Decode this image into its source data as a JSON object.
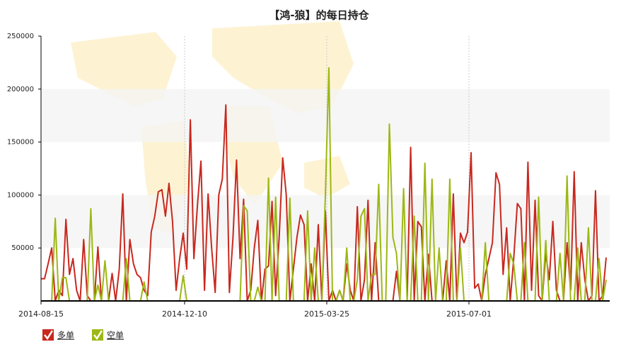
{
  "chart_data": {
    "type": "line",
    "title": "【鸿-狼】的每日持仓",
    "categories": [
      "2014-08-15",
      null,
      null,
      null,
      null,
      null,
      null,
      null,
      null,
      null,
      null,
      null,
      null,
      null,
      null,
      null,
      null,
      null,
      null,
      null,
      null,
      null,
      null,
      null,
      null,
      null,
      null,
      null,
      null,
      null,
      null,
      null,
      null,
      null,
      null,
      null,
      null,
      null,
      null,
      null,
      "2014-12-10",
      null,
      null,
      null,
      null,
      null,
      null,
      null,
      null,
      null,
      null,
      null,
      null,
      null,
      null,
      null,
      null,
      null,
      null,
      null,
      null,
      null,
      null,
      null,
      null,
      null,
      null,
      null,
      null,
      null,
      null,
      null,
      null,
      null,
      null,
      null,
      null,
      null,
      null,
      null,
      "2015-03-25",
      null,
      null,
      null,
      null,
      null,
      null,
      null,
      null,
      null,
      null,
      null,
      null,
      null,
      null,
      null,
      null,
      null,
      null,
      null,
      null,
      null,
      null,
      null,
      null,
      null,
      null,
      null,
      null,
      null,
      null,
      null,
      null,
      null,
      null,
      null,
      null,
      null,
      null,
      null,
      "2015-07-01",
      null,
      null,
      null,
      null,
      null,
      null,
      null,
      null,
      null,
      null,
      null,
      null,
      null,
      null,
      null,
      null,
      null,
      null,
      null,
      null,
      null,
      null,
      null,
      null,
      null,
      null,
      null,
      null,
      null,
      null,
      null,
      null,
      null,
      null,
      null,
      null,
      null,
      null,
      null
    ],
    "series": [
      {
        "name": "多单",
        "color": "#c8281e",
        "values": [
          21000,
          21000,
          35000,
          50000,
          0,
          10000,
          5000,
          77000,
          25000,
          40000,
          10000,
          0,
          58000,
          5000,
          0,
          0,
          51000,
          0,
          0,
          0,
          26000,
          0,
          30000,
          101000,
          0,
          58000,
          35000,
          25000,
          22000,
          10000,
          5000,
          65000,
          80000,
          103000,
          105000,
          80000,
          111000,
          75000,
          10000,
          40000,
          64000,
          30000,
          171000,
          40000,
          90000,
          132000,
          10000,
          101000,
          50000,
          8000,
          100000,
          115000,
          185000,
          8000,
          60000,
          133000,
          40000,
          96000,
          0,
          10000,
          50000,
          76000,
          0,
          30000,
          33000,
          94000,
          5000,
          60000,
          135000,
          100000,
          0,
          30000,
          60000,
          81000,
          72000,
          0,
          35000,
          0,
          72000,
          0,
          85000,
          0,
          10000,
          0,
          10000,
          0,
          35000,
          10000,
          0,
          89000,
          0,
          20000,
          95000,
          0,
          55000,
          0,
          0,
          0,
          0,
          0,
          28000,
          0,
          0,
          0,
          145000,
          0,
          75000,
          70000,
          0,
          44000,
          0,
          0,
          0,
          0,
          38000,
          0,
          101000,
          0,
          64000,
          55000,
          65000,
          140000,
          12000,
          16000,
          0,
          25000,
          40000,
          55000,
          121000,
          110000,
          25000,
          69000,
          0,
          40000,
          92000,
          87000,
          0,
          131000,
          10000,
          95000,
          5000,
          0,
          45000,
          20000,
          75000,
          10000,
          0,
          0,
          55000,
          10000,
          122000,
          0,
          55000,
          20000,
          0,
          5000,
          104000,
          0,
          5000,
          41000
        ]
      },
      {
        "name": "空单",
        "color": "#9cb814",
        "values": [
          0,
          0,
          0,
          0,
          78000,
          0,
          22000,
          22000,
          0,
          0,
          0,
          0,
          0,
          0,
          87000,
          0,
          15000,
          0,
          38000,
          0,
          0,
          0,
          0,
          0,
          40000,
          0,
          0,
          0,
          0,
          18000,
          0,
          0,
          0,
          0,
          0,
          0,
          0,
          0,
          0,
          0,
          24000,
          0,
          0,
          0,
          0,
          0,
          0,
          0,
          0,
          0,
          0,
          0,
          0,
          0,
          0,
          0,
          0,
          90000,
          85000,
          0,
          0,
          13000,
          0,
          0,
          116000,
          0,
          98000,
          0,
          0,
          0,
          97000,
          0,
          0,
          0,
          0,
          85000,
          0,
          50000,
          0,
          0,
          100000,
          220000,
          0,
          0,
          10000,
          0,
          50000,
          0,
          0,
          20000,
          80000,
          87000,
          0,
          25000,
          25000,
          110000,
          0,
          0,
          167000,
          60000,
          45000,
          0,
          106000,
          0,
          0,
          80000,
          0,
          0,
          130000,
          0,
          115000,
          0,
          50000,
          0,
          0,
          115000,
          0,
          0,
          50000,
          0,
          0,
          0,
          0,
          0,
          0,
          55000,
          0,
          0,
          0,
          0,
          0,
          0,
          45000,
          35000,
          0,
          0,
          55000,
          0,
          0,
          0,
          98000,
          0,
          57000,
          0,
          0,
          0,
          45000,
          0,
          118000,
          0,
          0,
          50000,
          0,
          0,
          69000,
          0,
          0,
          40000,
          0,
          20000
        ]
      }
    ],
    "ylim": [
      0,
      250000
    ],
    "yticks": [
      50000,
      100000,
      150000,
      200000,
      250000
    ],
    "grid": true,
    "legend": "bottom-left"
  }
}
